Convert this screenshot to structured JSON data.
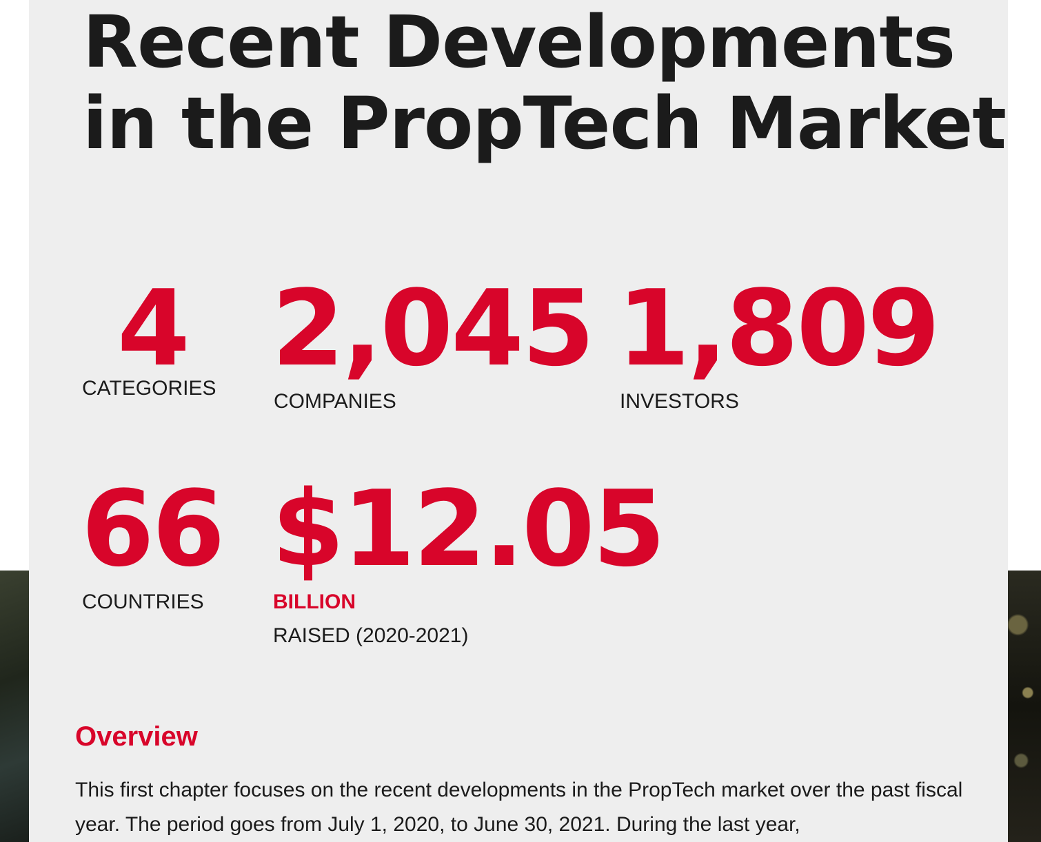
{
  "header": {
    "title_line1": "Recent Developments",
    "title_line2": "in the PropTech Market"
  },
  "stats": [
    {
      "value": "4",
      "label": "CATEGORIES"
    },
    {
      "value": "2,045",
      "label": "COMPANIES"
    },
    {
      "value": "1,809",
      "label": "INVESTORS"
    },
    {
      "value": "66",
      "label": "COUNTRIES"
    },
    {
      "value": "$12.05",
      "unit": "BILLION",
      "label": "RAISED (2020-2021)"
    }
  ],
  "overview": {
    "heading": "Overview",
    "body": "This first chapter focuses on the recent developments in the PropTech market over the past fiscal year. The period goes from July 1, 2020, to June 30, 2021. During the last year,"
  },
  "colors": {
    "accent": "#d8052a",
    "panel": "#eeeeee",
    "text": "#1b1b1b"
  }
}
